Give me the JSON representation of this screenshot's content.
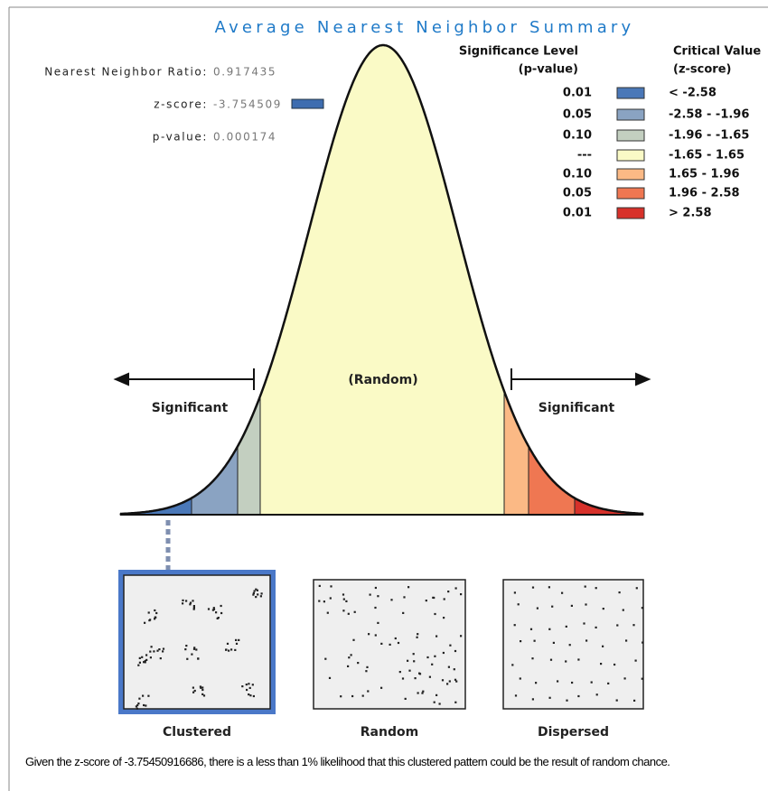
{
  "title": "Average Nearest Neighbor Summary",
  "stats": [
    {
      "label": "Nearest Neighbor Ratio:",
      "value": "0.917435"
    },
    {
      "label": "z-score:",
      "value": "-3.754509"
    },
    {
      "label": "p-value:",
      "value": "0.000174"
    }
  ],
  "legend": {
    "headers": {
      "significance": [
        "Significance Level",
        "(p-value)"
      ],
      "critical": [
        "Critical Value",
        "(z-score)"
      ]
    },
    "rows": [
      {
        "p": "0.01",
        "z": "< -2.58",
        "color": "#4a78b8"
      },
      {
        "p": "0.05",
        "z": "-2.58 - -1.96",
        "color": "#8aa3c2"
      },
      {
        "p": "0.10",
        "z": "-1.96 - -1.65",
        "color": "#c3cfc0"
      },
      {
        "p": "---",
        "z": "-1.65 - 1.65",
        "color": "#fafac6"
      },
      {
        "p": "0.10",
        "z": "1.65 - 1.96",
        "color": "#fbb985"
      },
      {
        "p": "0.05",
        "z": "1.96 - 2.58",
        "color": "#ef7752"
      },
      {
        "p": "0.01",
        "z": "> 2.58",
        "color": "#d7312a"
      }
    ]
  },
  "curve": {
    "left_label": "Significant",
    "center_label": "(Random)",
    "right_label": "Significant"
  },
  "patterns": [
    "Clustered",
    "Random",
    "Dispersed"
  ],
  "caption": "Given the z-score of -3.75450916686, there is a less than 1% likelihood that this clustered pattern could be the result of random chance."
}
